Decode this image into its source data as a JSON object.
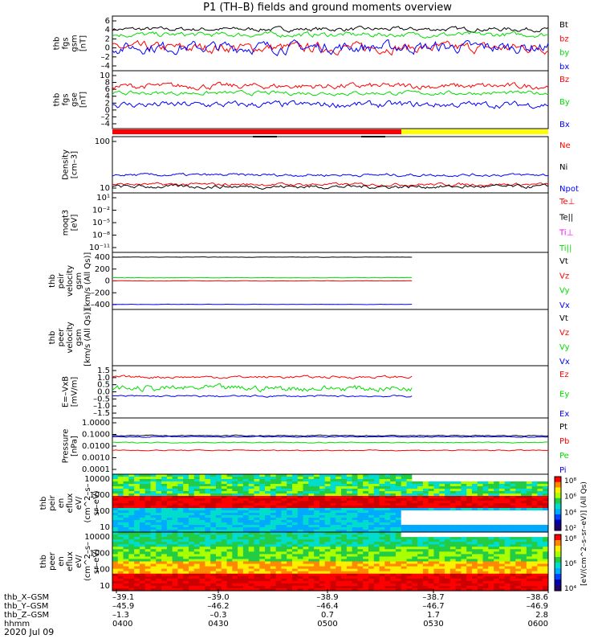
{
  "chart_data": {
    "type": "line",
    "title": "P1 (TH–B) fields and ground moments overview",
    "date_label": "2020 Jul 09",
    "xlim": [
      "04:00",
      "06:00"
    ],
    "x_ticks": [
      "0400",
      "0430",
      "0500",
      "0530",
      "0600"
    ],
    "ephemeris_rows": [
      {
        "label": "thb_X–GSM",
        "values": [
          "–39.1",
          "–39.0",
          "–38.9",
          "–38.7",
          "–38.6"
        ]
      },
      {
        "label": "thb_Y–GSM",
        "values": [
          "–45.9",
          "–46.2",
          "–46.4",
          "–46.7",
          "–46.9"
        ]
      },
      {
        "label": "thb_Z–GSM",
        "values": [
          "–1.3",
          "–0.3",
          "0.7",
          "1.7",
          "2.8"
        ]
      },
      {
        "label": "hhmm",
        "values": [
          "0400",
          "0430",
          "0500",
          "0530",
          "0600"
        ]
      }
    ],
    "panels": [
      {
        "id": "fgs_gsm",
        "ylabel": [
          "thb",
          "fgs",
          "gsm",
          "[nT]"
        ],
        "ylim": [
          -4,
          6
        ],
        "yticks": [
          "–4",
          "–2",
          "0",
          "2",
          "4",
          "6"
        ],
        "series": [
          {
            "name": "Bt",
            "color": "#000000",
            "level": 3.6,
            "amp": 0.6
          },
          {
            "name": "bz",
            "color": "#ff0000",
            "level": 0.2,
            "amp": 1.4
          },
          {
            "name": "by",
            "color": "#00dd00",
            "level": 2.6,
            "amp": 0.7
          },
          {
            "name": "bx",
            "color": "#0000ff",
            "level": 0.3,
            "amp": 1.6
          }
        ]
      },
      {
        "id": "fgs_gse",
        "ylabel": [
          "thb",
          "fgs",
          "gse",
          "[nT]"
        ],
        "ylim": [
          -5,
          10
        ],
        "yticks": [
          "–4",
          "–2",
          "0",
          "2",
          "4",
          "6",
          "8",
          "10"
        ],
        "series": [
          {
            "name": "Bz",
            "color": "#ff0000",
            "level": 6.0,
            "amp": 1.2
          },
          {
            "name": "By",
            "color": "#00dd00",
            "level": 4.2,
            "amp": 0.8
          },
          {
            "name": "Bx",
            "color": "#0000ff",
            "level": 1.2,
            "amp": 1.3
          }
        ]
      },
      {
        "id": "density",
        "ylabel": [
          "Density",
          "[cm–3]"
        ],
        "log": true,
        "ylim": [
          3,
          300
        ],
        "yticks": [
          "10",
          "100"
        ],
        "series": [
          {
            "name": "Ne",
            "color": "#ff0000",
            "level": 6.0,
            "amp": 0.08
          },
          {
            "name": "Ni",
            "color": "#000000",
            "level": 5.0,
            "amp": 0.1
          },
          {
            "name": "Npot",
            "color": "#0000ff",
            "level": 13.0,
            "amp": 0.08
          }
        ]
      },
      {
        "id": "moms_t3",
        "ylabel": [
          "moqt3",
          "[eV]"
        ],
        "log": true,
        "ylim": [
          "1e-11",
          "1e3"
        ],
        "yticks": [
          "10¹",
          "10⁻²",
          "10⁻⁵",
          "10⁻⁸",
          "10⁻¹¹"
        ],
        "series": [
          {
            "name": "Te⊥",
            "color": "#ff0000"
          },
          {
            "name": "Te||",
            "color": "#000000"
          },
          {
            "name": "Ti⊥",
            "color": "#ff00ff"
          },
          {
            "name": "Ti||",
            "color": "#00dd00"
          }
        ]
      },
      {
        "id": "peir_velocity",
        "ylabel": [
          "thb",
          "peir",
          "velocity",
          "gsm",
          "[km/s (All Qs)]"
        ],
        "ylim": [
          -450,
          450
        ],
        "yticks": [
          "400",
          "200",
          "0",
          "–200",
          "–400"
        ],
        "series": [
          {
            "name": "Vt",
            "color": "#000000",
            "level": 375
          },
          {
            "name": "Vz",
            "color": "#ff0000",
            "level": 0
          },
          {
            "name": "Vy",
            "color": "#00dd00",
            "level": 50
          },
          {
            "name": "Vx",
            "color": "#0000ff",
            "level": -370
          }
        ]
      },
      {
        "id": "peer_velocity",
        "ylabel": [
          "thb",
          "peer",
          "velocity",
          "gsm",
          "[km/s (All Qs)]"
        ],
        "ylim": [
          0,
          1
        ],
        "yticks": [],
        "series": [
          {
            "name": "Vt",
            "color": "#000000"
          },
          {
            "name": "Vz",
            "color": "#ff0000"
          },
          {
            "name": "Vy",
            "color": "#00dd00"
          },
          {
            "name": "Vx",
            "color": "#0000ff"
          }
        ]
      },
      {
        "id": "efield",
        "ylabel": [
          "E=–VxB",
          "[mV/m]"
        ],
        "ylim": [
          -1.5,
          1.5
        ],
        "yticks": [
          "1.5",
          "1.0",
          "0.5",
          "0.0",
          "–0.5",
          "–1.0",
          "–1.5"
        ],
        "series": [
          {
            "name": "Ez",
            "color": "#ff0000",
            "level": 0.85,
            "amp": 0.12
          },
          {
            "name": "Ey",
            "color": "#00dd00",
            "level": 0.2,
            "amp": 0.28
          },
          {
            "name": "Ex",
            "color": "#0000ff",
            "level": -0.25,
            "amp": 0.08
          }
        ]
      },
      {
        "id": "pressure",
        "ylabel": [
          "Pressure",
          "[nPa]"
        ],
        "log": true,
        "ylim": [
          0.0001,
          1.0
        ],
        "yticks": [
          "1.0000",
          "0.1000",
          "0.0100",
          "0.0010",
          "0.0001"
        ],
        "series": [
          {
            "name": "Pt",
            "color": "#000000",
            "level": 0.055
          },
          {
            "name": "Pb",
            "color": "#ff0000",
            "level": 0.005
          },
          {
            "name": "Pe",
            "color": "#00dd00",
            "level": 0.018
          },
          {
            "name": "Pi",
            "color": "#0000ff",
            "level": 0.045
          }
        ]
      },
      {
        "id": "peir_en_eflux",
        "type": "heatmap",
        "ylabel": [
          "thb",
          "peir",
          "en",
          "eflux",
          "eV/",
          "(cm^2–s–",
          "sr–eV)"
        ],
        "ylim": [
          5,
          30000
        ],
        "yticks": [
          "10000",
          "1000",
          "100",
          "10"
        ]
      },
      {
        "id": "peer_en_eflux",
        "type": "heatmap",
        "ylabel": [
          "thb",
          "peer",
          "en",
          "eflux",
          "eV/",
          "(cm^2–s–",
          "sr–eV)"
        ],
        "ylim": [
          5,
          30000
        ],
        "yticks": [
          "10000",
          "1000",
          "100",
          "10"
        ]
      }
    ],
    "colorbar": {
      "label": "[eV/(cm^2–s–sr–eV)] (All Qs)",
      "ticks_upper": [
        "10⁸",
        "10⁶",
        "10⁴",
        "10²"
      ],
      "ticks_lower": [
        "10⁸",
        "10⁶",
        "10⁴"
      ]
    },
    "colors": {
      "red": "#ff0000",
      "green": "#00dd00",
      "blue": "#0000ff",
      "yellow": "#ffff00",
      "magenta": "#ff00ff"
    }
  }
}
